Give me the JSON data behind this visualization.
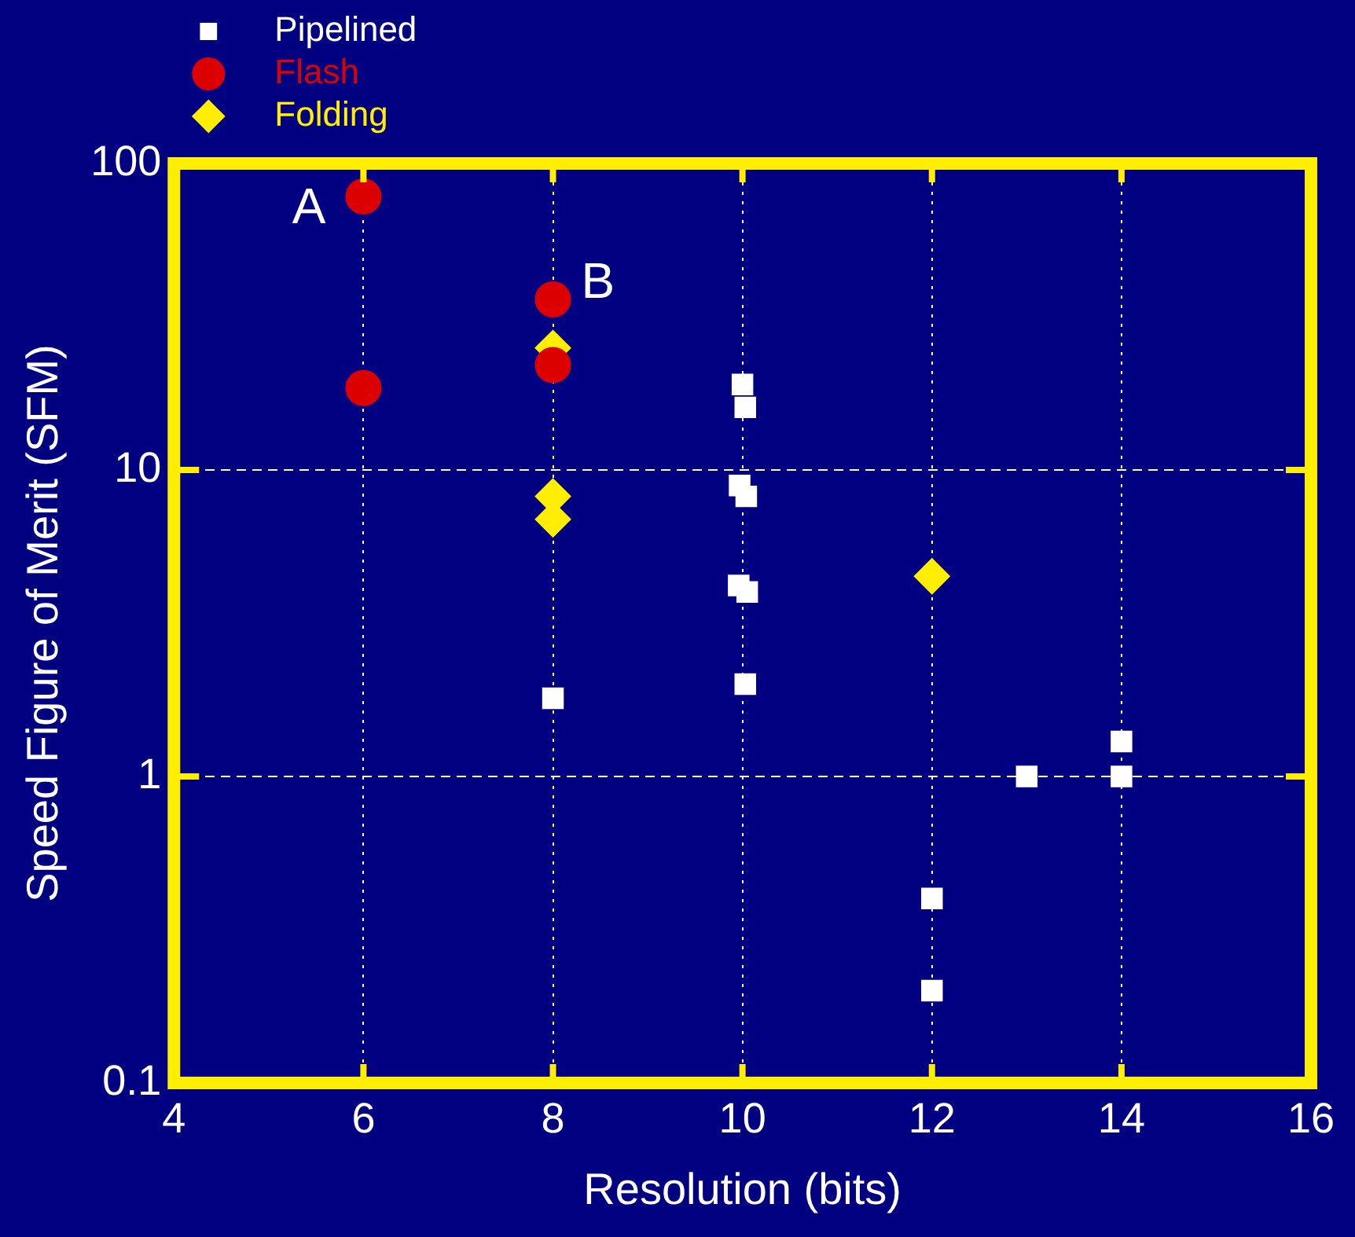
{
  "chart_data": {
    "type": "scatter",
    "xlabel": "Resolution (bits)",
    "ylabel": "Speed Figure of Merit (SFM)",
    "log": "y",
    "xlim": [
      4,
      16
    ],
    "xticks": [
      4,
      6,
      8,
      10,
      12,
      14,
      16
    ],
    "ylim": [
      0.1,
      100
    ],
    "yticks": [
      0.1,
      1,
      10,
      100
    ],
    "grid": true,
    "legend": "top left",
    "series": [
      {
        "name": "Pipelined",
        "color": "#ffffff",
        "marker": "square",
        "x": [
          8,
          10,
          10.03,
          9.97,
          10.04,
          9.96,
          10.05,
          10.03,
          12,
          12,
          13,
          14,
          14
        ],
        "values": [
          1.8,
          19,
          16,
          8.9,
          8.2,
          4.2,
          4,
          2,
          0.4,
          0.2,
          1,
          1.3,
          1
        ]
      },
      {
        "name": "Flash",
        "color": "#dd0000",
        "marker": "circle",
        "x": [
          6,
          6,
          8,
          8
        ],
        "values": [
          78,
          18.5,
          36,
          22
        ]
      },
      {
        "name": "Folding",
        "color": "#ffee00",
        "marker": "diamond",
        "x": [
          8,
          8,
          8,
          12
        ],
        "values": [
          25,
          8.2,
          6.9,
          4.5
        ]
      }
    ],
    "annotations": [
      {
        "text": "A",
        "x": 6,
        "y": 78
      },
      {
        "text": "B",
        "x": 8,
        "y": 36
      }
    ]
  }
}
